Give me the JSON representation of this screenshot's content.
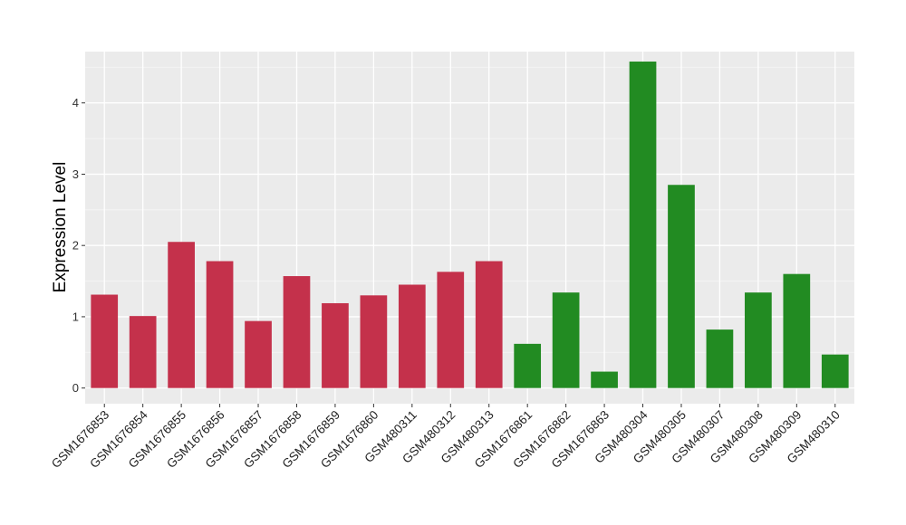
{
  "chart_data": {
    "type": "bar",
    "ylabel": "Expression Level",
    "xlabel": "",
    "ylim": [
      -0.22,
      4.72
    ],
    "yticks": [
      0,
      1,
      2,
      3,
      4
    ],
    "grid": true,
    "legend": "none",
    "group_colors": {
      "group1": "#C4314B",
      "group2": "#228B22"
    },
    "categories": [
      "GSM1676853",
      "GSM1676854",
      "GSM1676855",
      "GSM1676856",
      "GSM1676857",
      "GSM1676858",
      "GSM1676859",
      "GSM1676860",
      "GSM480311",
      "GSM480312",
      "GSM480313",
      "GSM1676861",
      "GSM1676862",
      "GSM1676863",
      "GSM480304",
      "GSM480305",
      "GSM480307",
      "GSM480308",
      "GSM480309",
      "GSM480310"
    ],
    "values": [
      1.31,
      1.01,
      2.05,
      1.78,
      0.94,
      1.57,
      1.19,
      1.3,
      1.45,
      1.63,
      1.78,
      0.62,
      1.34,
      0.23,
      4.58,
      2.85,
      0.82,
      1.34,
      1.6,
      0.47
    ],
    "groups": [
      "group1",
      "group1",
      "group1",
      "group1",
      "group1",
      "group1",
      "group1",
      "group1",
      "group1",
      "group1",
      "group1",
      "group2",
      "group2",
      "group2",
      "group2",
      "group2",
      "group2",
      "group2",
      "group2",
      "group2"
    ]
  }
}
